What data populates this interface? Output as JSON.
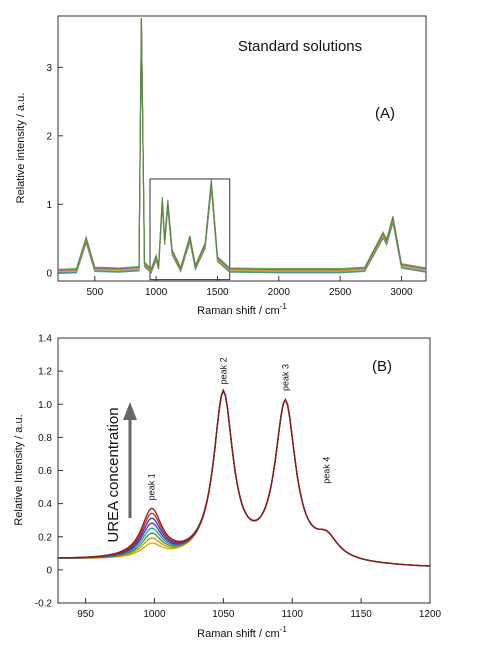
{
  "chart_data": [
    {
      "panel": "A",
      "type": "line",
      "title": "Standard solutions",
      "panel_label": "(A)",
      "xlabel": "Raman shift / cm",
      "xlabel_sup": "-1",
      "ylabel": "Relative intensity / a.u.",
      "xlim": [
        200,
        3200
      ],
      "ylim": [
        -0.12,
        3.75
      ],
      "xticks": [
        500,
        1000,
        1500,
        2000,
        2500,
        3000
      ],
      "yticks": [
        0,
        1,
        2,
        3
      ],
      "zoom_box_x": [
        950,
        1600
      ],
      "zoom_box_y": [
        -0.1,
        1.37
      ],
      "series_colors": [
        "#2e8b57",
        "#3a7fa8",
        "#c9b400",
        "#d9752e",
        "#7a4a9a",
        "#4a9a3a"
      ],
      "peaks": [
        {
          "x": 200,
          "y": 0.02
        },
        {
          "x": 350,
          "y": 0.03
        },
        {
          "x": 430,
          "y": 0.48
        },
        {
          "x": 500,
          "y": 0.05
        },
        {
          "x": 700,
          "y": 0.04
        },
        {
          "x": 860,
          "y": 0.06
        },
        {
          "x": 880,
          "y": 3.72
        },
        {
          "x": 905,
          "y": 0.12
        },
        {
          "x": 960,
          "y": 0.03
        },
        {
          "x": 1000,
          "y": 0.22
        },
        {
          "x": 1020,
          "y": 0.08
        },
        {
          "x": 1050,
          "y": 1.05
        },
        {
          "x": 1070,
          "y": 0.45
        },
        {
          "x": 1095,
          "y": 1.01
        },
        {
          "x": 1130,
          "y": 0.3
        },
        {
          "x": 1200,
          "y": 0.05
        },
        {
          "x": 1275,
          "y": 0.5
        },
        {
          "x": 1320,
          "y": 0.08
        },
        {
          "x": 1400,
          "y": 0.4
        },
        {
          "x": 1450,
          "y": 1.3
        },
        {
          "x": 1500,
          "y": 0.2
        },
        {
          "x": 1600,
          "y": 0.04
        },
        {
          "x": 2000,
          "y": 0.03
        },
        {
          "x": 2500,
          "y": 0.03
        },
        {
          "x": 2700,
          "y": 0.05
        },
        {
          "x": 2850,
          "y": 0.55
        },
        {
          "x": 2880,
          "y": 0.45
        },
        {
          "x": 2930,
          "y": 0.78
        },
        {
          "x": 3000,
          "y": 0.1
        },
        {
          "x": 3200,
          "y": 0.04
        }
      ]
    },
    {
      "panel": "B",
      "type": "line",
      "panel_label": "(B)",
      "xlabel": "Raman shift / cm",
      "xlabel_sup": "-1",
      "ylabel": "Relative Intensity / a.u.",
      "xlim": [
        930,
        1200
      ],
      "ylim": [
        -0.2,
        1.4
      ],
      "xticks": [
        950,
        1000,
        1050,
        1100,
        1150,
        1200
      ],
      "yticks": [
        -0.2,
        0,
        0.2,
        0.4,
        0.6,
        0.8,
        1.0,
        1.2,
        1.4
      ],
      "arrow_label": "UREA concentration",
      "peak_labels": [
        {
          "text": "peak 1",
          "x": 998,
          "y": 0.42
        },
        {
          "text": "peak 2",
          "x": 1050,
          "y": 1.12
        },
        {
          "text": "peak 3",
          "x": 1095,
          "y": 1.08
        },
        {
          "text": "peak 4",
          "x": 1125,
          "y": 0.52
        }
      ],
      "series": [
        {
          "color": "#8b1a1a",
          "peak1": 0.29
        },
        {
          "color": "#d62728",
          "peak1": 0.26
        },
        {
          "color": "#1f3fb4",
          "peak1": 0.23
        },
        {
          "color": "#7a2a9a",
          "peak1": 0.2
        },
        {
          "color": "#17a2b8",
          "peak1": 0.17
        },
        {
          "color": "#2ca02c",
          "peak1": 0.14
        },
        {
          "color": "#e68a00",
          "peak1": 0.11
        },
        {
          "color": "#c9b400",
          "peak1": 0.08
        }
      ]
    }
  ]
}
